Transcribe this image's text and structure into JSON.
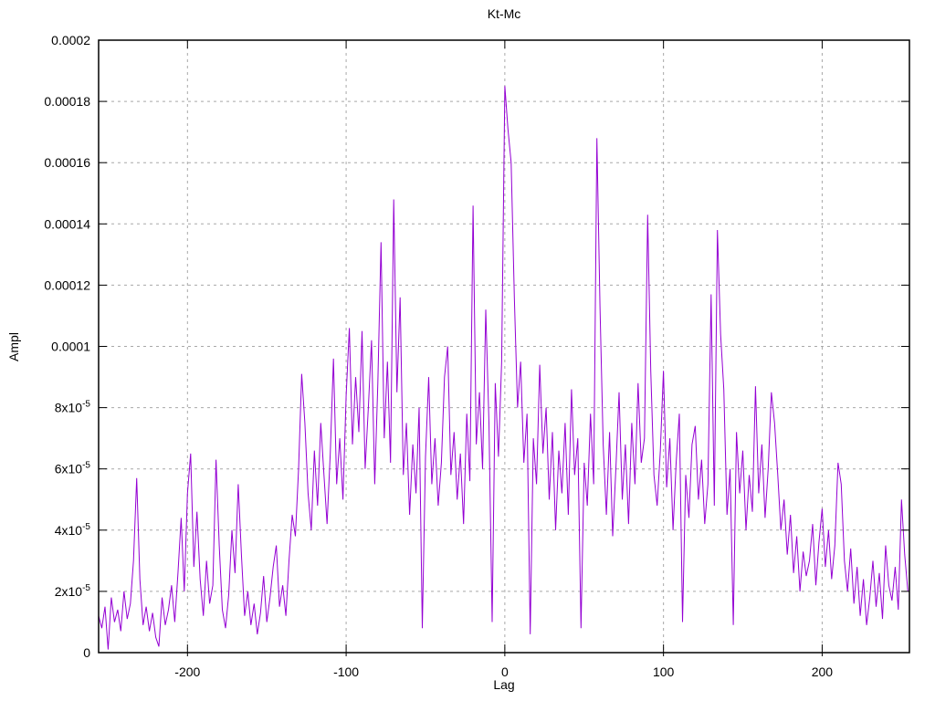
{
  "page": {
    "background": "#ffffff"
  },
  "chart_data": {
    "type": "line",
    "title": "Kt-Mc",
    "xlabel": "Lag",
    "ylabel": "Ampl",
    "xlim": [
      -256,
      255
    ],
    "ylim": [
      0,
      0.0002
    ],
    "grid": true,
    "legend": "none",
    "line_color": "#9400d3",
    "grid_color": "#a8a8a8",
    "axis_color": "#000000",
    "x_ticks": [
      {
        "v": -200,
        "label": "-200"
      },
      {
        "v": -100,
        "label": "-100"
      },
      {
        "v": 0,
        "label": "0"
      },
      {
        "v": 100,
        "label": "100"
      },
      {
        "v": 200,
        "label": "200"
      }
    ],
    "y_tick_unit": 1e-06,
    "y_ticks": [
      {
        "v": 0,
        "label": "0"
      },
      {
        "v": 20,
        "label": "2x10^-5"
      },
      {
        "v": 40,
        "label": "4x10^-5"
      },
      {
        "v": 60,
        "label": "6x10^-5"
      },
      {
        "v": 80,
        "label": "8x10^-5"
      },
      {
        "v": 100,
        "label": "0.0001"
      },
      {
        "v": 120,
        "label": "0.00012"
      },
      {
        "v": 140,
        "label": "0.00014"
      },
      {
        "v": 160,
        "label": "0.00016"
      },
      {
        "v": 180,
        "label": "0.00018"
      },
      {
        "v": 200,
        "label": "0.0002"
      }
    ],
    "notable_peaks": [
      {
        "lag": 0,
        "ampl": 0.000185
      },
      {
        "lag": 58,
        "ampl": 0.000168
      },
      {
        "lag": -70,
        "ampl": 0.000148
      },
      {
        "lag": -20,
        "ampl": 0.000146
      },
      {
        "lag": 90,
        "ampl": 0.000143
      },
      {
        "lag": 134,
        "ampl": 0.000138
      },
      {
        "lag": -78,
        "ampl": 0.000134
      },
      {
        "lag": 130,
        "ampl": 0.000117
      },
      {
        "lag": -128,
        "ampl": 9.1e-05
      },
      {
        "lag": -233,
        "ampl": 5.7e-05
      },
      {
        "lag": -201,
        "ampl": 6.5e-05
      },
      {
        "lag": -182,
        "ampl": 6.3e-05
      },
      {
        "lag": 210,
        "ampl": 6.2e-05
      }
    ],
    "series": [
      {
        "name": "Kt-Mc",
        "color": "#9400d3",
        "x_start": -256,
        "x_step": 2,
        "value_scale": 1e-06,
        "values": [
          12,
          8,
          15,
          1,
          18,
          10,
          14,
          7,
          20,
          11,
          16,
          30,
          57,
          24,
          9,
          15,
          7,
          13,
          5,
          2,
          18,
          9,
          14,
          22,
          10,
          26,
          44,
          20,
          52,
          65,
          28,
          46,
          24,
          12,
          30,
          16,
          22,
          63,
          35,
          14,
          8,
          19,
          40,
          26,
          55,
          32,
          12,
          20,
          9,
          16,
          6,
          13,
          25,
          10,
          18,
          28,
          35,
          15,
          22,
          12,
          30,
          45,
          38,
          60,
          91,
          75,
          52,
          40,
          66,
          48,
          75,
          58,
          42,
          65,
          96,
          55,
          70,
          50,
          84,
          106,
          68,
          90,
          72,
          105,
          60,
          80,
          102,
          55,
          88,
          134,
          70,
          95,
          62,
          148,
          85,
          116,
          58,
          75,
          45,
          68,
          52,
          80,
          8,
          64,
          90,
          55,
          70,
          48,
          62,
          90,
          100,
          58,
          72,
          50,
          65,
          42,
          78,
          56,
          146,
          68,
          85,
          60,
          112,
          75,
          10,
          88,
          64,
          95,
          185,
          171,
          160,
          116,
          80,
          95,
          62,
          78,
          6,
          70,
          55,
          94,
          65,
          80,
          50,
          72,
          40,
          66,
          52,
          75,
          45,
          86,
          58,
          70,
          8,
          62,
          48,
          78,
          55,
          168,
          113,
          68,
          45,
          72,
          38,
          60,
          85,
          50,
          68,
          42,
          75,
          55,
          88,
          62,
          70,
          143,
          92,
          58,
          48,
          66,
          92,
          54,
          70,
          40,
          62,
          78,
          10,
          58,
          44,
          68,
          74,
          50,
          63,
          42,
          55,
          117,
          48,
          138,
          104,
          86,
          45,
          60,
          9,
          72,
          52,
          66,
          40,
          58,
          46,
          87,
          52,
          68,
          44,
          60,
          85,
          75,
          58,
          40,
          50,
          32,
          45,
          26,
          38,
          20,
          33,
          25,
          30,
          42,
          22,
          36,
          47,
          28,
          40,
          24,
          35,
          62,
          55,
          30,
          20,
          34,
          16,
          28,
          12,
          24,
          9,
          18,
          30,
          15,
          26,
          11,
          35,
          22,
          17,
          28,
          14,
          50,
          32,
          20
        ]
      }
    ]
  }
}
